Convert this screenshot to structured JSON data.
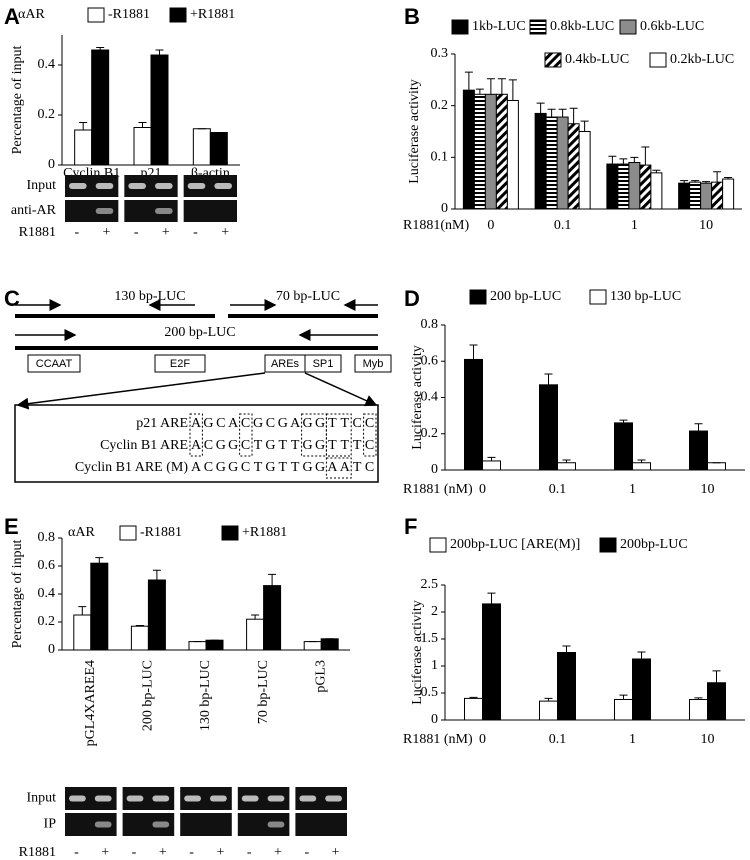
{
  "chart_data": [
    {
      "type": "bar",
      "label": "A",
      "legend_prefix": "αAR",
      "ylabel": "Percentage of input",
      "categories": [
        "Cyclin B1",
        "p21",
        "β-actin"
      ],
      "series": [
        {
          "name": "-R1881",
          "color": "#ffffff",
          "values": [
            0.14,
            0.15,
            0.145
          ],
          "error": [
            0.03,
            0.02,
            0
          ]
        },
        {
          "name": "+R1881",
          "color": "#000000",
          "values": [
            0.46,
            0.44,
            0.13
          ],
          "error": [
            0.01,
            0.02,
            0
          ]
        }
      ],
      "ylim": [
        0,
        0.52
      ],
      "yticks": [
        0,
        0.2,
        0.4
      ],
      "gel": {
        "rows": [
          "Input",
          "anti-AR"
        ],
        "treatment": "R1881",
        "signs": [
          "-",
          "+",
          "-",
          "+",
          "-",
          "+"
        ]
      }
    },
    {
      "type": "bar",
      "label": "B",
      "ylabel": "Luciferase activity",
      "xlabel": "R1881(nM)",
      "categories": [
        "0",
        "0.1",
        "1",
        "10"
      ],
      "series": [
        {
          "name": "1kb-LUC",
          "color": "#000000",
          "pattern": "solid",
          "values": [
            0.23,
            0.185,
            0.087,
            0.05
          ],
          "error": [
            0.035,
            0.02,
            0.015,
            0.005
          ]
        },
        {
          "name": "0.8kb-LUC",
          "color": "#000000",
          "pattern": "horizontal",
          "values": [
            0.222,
            0.178,
            0.087,
            0.052
          ],
          "error": [
            0.01,
            0.015,
            0.01,
            0.003
          ]
        },
        {
          "name": "0.6kb-LUC",
          "color": "#8c8c8c",
          "pattern": "solid",
          "values": [
            0.222,
            0.178,
            0.09,
            0.05
          ],
          "error": [
            0.03,
            0.015,
            0.01,
            0.003
          ]
        },
        {
          "name": "0.4kb-LUC",
          "color": "#000000",
          "pattern": "diagonal",
          "values": [
            0.222,
            0.165,
            0.085,
            0.052
          ],
          "error": [
            0.03,
            0.03,
            0.035,
            0.02
          ]
        },
        {
          "name": "0.2kb-LUC",
          "color": "#ffffff",
          "pattern": "solid",
          "values": [
            0.21,
            0.15,
            0.07,
            0.058
          ],
          "error": [
            0.04,
            0.02,
            0.005,
            0.003
          ]
        }
      ],
      "ylim": [
        0,
        0.3
      ],
      "yticks": [
        0,
        0.1,
        0.2,
        0.3
      ]
    },
    {
      "type": "bar",
      "label": "D",
      "ylabel": "Luciferase activity",
      "xlabel": "R1881 (nM)",
      "categories": [
        "0",
        "0.1",
        "1",
        "10"
      ],
      "series": [
        {
          "name": "200 bp-LUC",
          "color": "#000000",
          "values": [
            0.61,
            0.47,
            0.26,
            0.215
          ],
          "error": [
            0.08,
            0.06,
            0.015,
            0.04
          ]
        },
        {
          "name": "130 bp-LUC",
          "color": "#ffffff",
          "values": [
            0.05,
            0.04,
            0.04,
            0.04
          ],
          "error": [
            0.02,
            0.015,
            0.015,
            0
          ]
        }
      ],
      "ylim": [
        0,
        0.8
      ],
      "yticks": [
        0,
        0.2,
        0.4,
        0.6,
        0.8
      ]
    },
    {
      "type": "bar",
      "label": "E",
      "legend_prefix": "αAR",
      "ylabel": "Percentage of input",
      "categories": [
        "pGL4XAREE4",
        "200 bp-LUC",
        "130 bp-LUC",
        "70 bp-LUC",
        "pGL3"
      ],
      "series": [
        {
          "name": "-R1881",
          "color": "#ffffff",
          "values": [
            0.25,
            0.17,
            0.06,
            0.22,
            0.06
          ],
          "error": [
            0.06,
            0.005,
            0,
            0.03,
            0
          ]
        },
        {
          "name": "+R1881",
          "color": "#000000",
          "values": [
            0.62,
            0.5,
            0.07,
            0.46,
            0.08
          ],
          "error": [
            0.04,
            0.07,
            0,
            0.08,
            0
          ]
        }
      ],
      "ylim": [
        0,
        0.8
      ],
      "yticks": [
        0,
        0.2,
        0.4,
        0.6,
        0.8
      ],
      "gel": {
        "rows": [
          "Input",
          "IP"
        ],
        "treatment": "R1881",
        "signs": [
          "-",
          "+",
          "-",
          "+",
          "-",
          "+",
          "-",
          "+",
          "-",
          "+"
        ]
      }
    },
    {
      "type": "bar",
      "label": "F",
      "ylabel": "Luciferase activity",
      "xlabel": "R1881 (nM)",
      "categories": [
        "0",
        "0.1",
        "1",
        "10"
      ],
      "series": [
        {
          "name": "200bp-LUC [ARE(M)]",
          "color": "#ffffff",
          "values": [
            0.4,
            0.35,
            0.38,
            0.38
          ],
          "error": [
            0.02,
            0.05,
            0.08,
            0.03
          ]
        },
        {
          "name": "200bp-LUC",
          "color": "#000000",
          "values": [
            2.15,
            1.25,
            1.13,
            0.69
          ],
          "error": [
            0.2,
            0.12,
            0.13,
            0.22
          ]
        }
      ],
      "ylim": [
        0,
        2.5
      ],
      "yticks": [
        0,
        0.5,
        1,
        1.5,
        2,
        2.5
      ]
    }
  ],
  "diagram": {
    "label": "C",
    "constructs": [
      "130 bp-LUC",
      "70 bp-LUC",
      "200 bp-LUC"
    ],
    "elements": [
      "CCAAT",
      "E2F",
      "AREs",
      "SP1",
      "Myb"
    ],
    "sequences": [
      {
        "name": "p21 ARE",
        "letters": [
          "A",
          "G",
          "C",
          "A",
          "C",
          "G",
          "C",
          "G",
          "A",
          "G",
          "G",
          "T",
          "T",
          "C",
          "C"
        ]
      },
      {
        "name": "Cyclin B1 ARE",
        "letters": [
          "A",
          "C",
          "G",
          "G",
          "C",
          "T",
          "G",
          "T",
          "T",
          "G",
          "G",
          "T",
          "T",
          "T",
          "C"
        ]
      },
      {
        "name": "Cyclin B1 ARE (M)",
        "letters": [
          "A",
          "C",
          "G",
          "G",
          "C",
          "T",
          "G",
          "T",
          "T",
          "G",
          "G",
          "A",
          "A",
          "T",
          "C"
        ]
      }
    ]
  }
}
